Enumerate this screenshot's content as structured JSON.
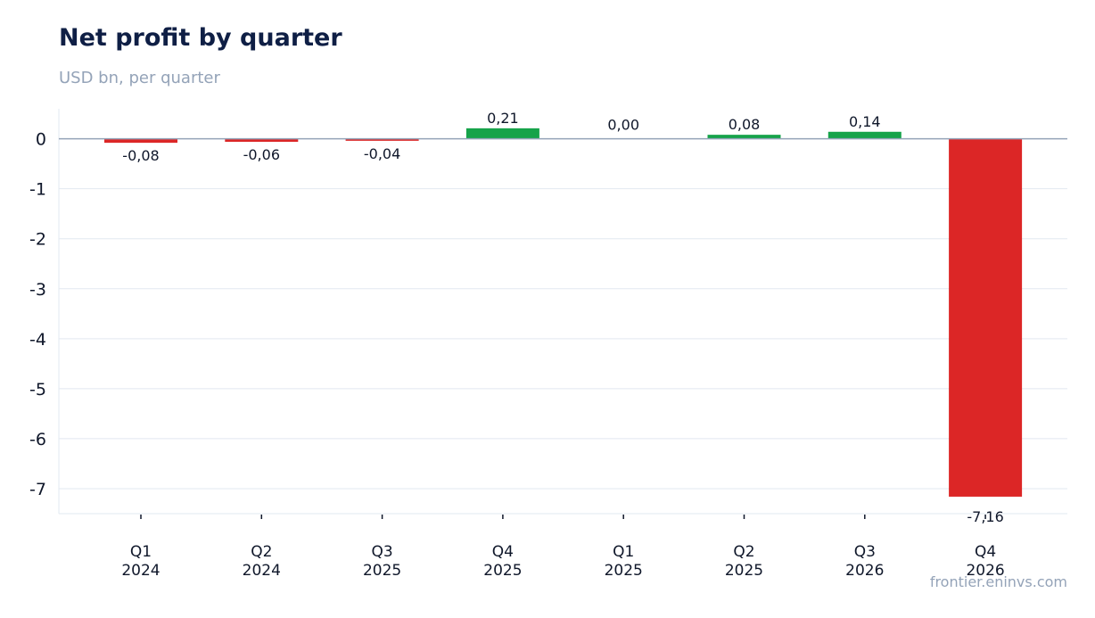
{
  "chart_data": {
    "type": "bar",
    "title": "Net profit by quarter",
    "subtitle": "USD bn, per quarter",
    "categories": [
      "Q1\n2024",
      "Q2\n2024",
      "Q3\n2025",
      "Q4\n2025",
      "Q1\n2025",
      "Q2\n2025",
      "Q3\n2026",
      "Q4\n2026"
    ],
    "values": [
      -0.08,
      -0.06,
      -0.04,
      0.21,
      0.0,
      0.08,
      0.14,
      -7.16
    ],
    "data_labels": [
      "-0,08",
      "-0,06",
      "-0,04",
      "0,21",
      "0,00",
      "0,08",
      "0,14",
      "-7,16"
    ],
    "y_ticks": [
      0,
      -1,
      -2,
      -3,
      -4,
      -5,
      -6,
      -7
    ],
    "y_tick_labels": [
      "0",
      "-1",
      "-2",
      "-3",
      "-4",
      "-5",
      "-6",
      "-7"
    ],
    "ylim": [
      -7.5,
      0.6
    ],
    "xlabel": "",
    "ylabel": "",
    "grid": true,
    "legend": false,
    "colors": {
      "positive": "#16a34a",
      "negative": "#dc2626",
      "grid": "#e2e8f0",
      "zero_line": "#94a3b8",
      "axis_text": "#0f172a",
      "title": "#0f1f45",
      "muted": "#94a3b8"
    }
  },
  "source": "frontier.eninvs.com"
}
